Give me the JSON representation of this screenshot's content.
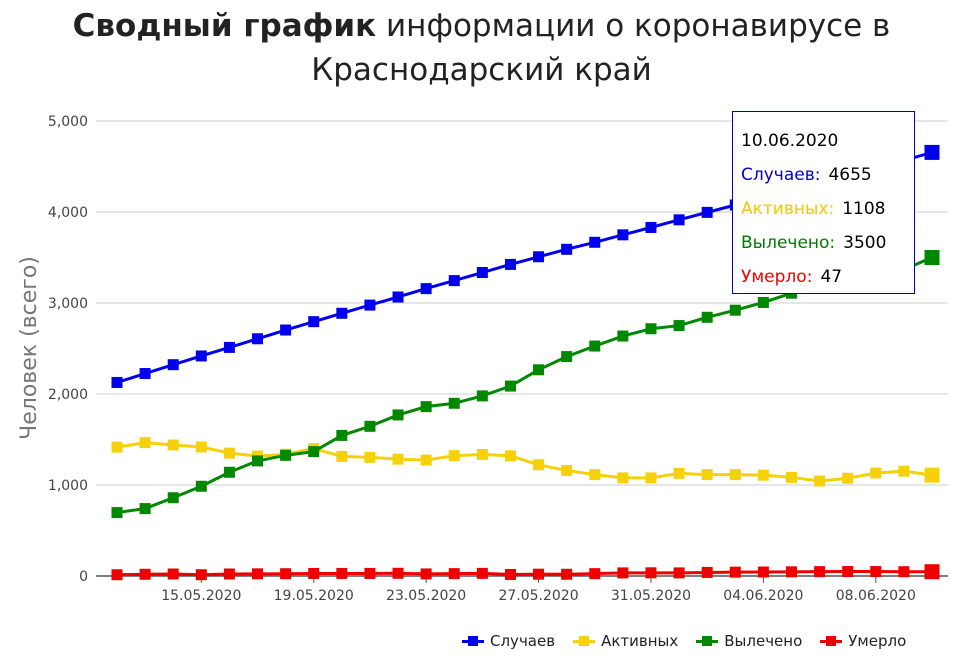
{
  "title": {
    "bold": "Сводный график",
    "rest_line1": "информации о коронавирусе в",
    "line2": "Краснодарский край"
  },
  "tooltip": {
    "date": "10.06.2020",
    "rows": [
      {
        "label": "Случаев:",
        "value": "4655",
        "color": "#0000cc"
      },
      {
        "label": "Активных:",
        "value": "1108",
        "color": "#f2c800"
      },
      {
        "label": "Вылечено:",
        "value": "3500",
        "color": "#007a00"
      },
      {
        "label": "Умерло:",
        "value": "47",
        "color": "#ee0000"
      }
    ]
  },
  "chart_data": {
    "type": "line",
    "title": "Сводный график информации о коронавирусе в Краснодарский край",
    "xlabel": "",
    "ylabel": "Человек (всего)",
    "ylim": [
      0,
      5000
    ],
    "y_ticks": [
      "0",
      "1,000",
      "2,000",
      "3,000",
      "4,000",
      "5,000"
    ],
    "grid": true,
    "legend_position": "bottom-right",
    "x": [
      "12.05.2020",
      "13.05.2020",
      "14.05.2020",
      "15.05.2020",
      "16.05.2020",
      "17.05.2020",
      "18.05.2020",
      "19.05.2020",
      "20.05.2020",
      "21.05.2020",
      "22.05.2020",
      "23.05.2020",
      "24.05.2020",
      "25.05.2020",
      "26.05.2020",
      "27.05.2020",
      "28.05.2020",
      "29.05.2020",
      "30.05.2020",
      "31.05.2020",
      "01.06.2020",
      "02.06.2020",
      "03.06.2020",
      "04.06.2020",
      "05.06.2020",
      "06.06.2020",
      "07.06.2020",
      "08.06.2020",
      "09.06.2020",
      "10.06.2020"
    ],
    "x_tick_labels": [
      "15.05.2020",
      "19.05.2020",
      "23.05.2020",
      "27.05.2020",
      "31.05.2020",
      "04.06.2020",
      "08.06.2020"
    ],
    "series": [
      {
        "name": "Случаев",
        "color": "#0000ee",
        "values": [
          2127,
          2225,
          2322,
          2418,
          2512,
          2607,
          2703,
          2795,
          2887,
          2977,
          3066,
          3158,
          3246,
          3335,
          3424,
          3508,
          3590,
          3667,
          3749,
          3830,
          3914,
          3996,
          4077,
          4158,
          4238,
          4318,
          4398,
          4478,
          4567,
          4655
        ]
      },
      {
        "name": "Активных",
        "color": "#f5d10a",
        "values": [
          1416,
          1465,
          1440,
          1418,
          1350,
          1318,
          1338,
          1400,
          1314,
          1304,
          1284,
          1274,
          1322,
          1336,
          1320,
          1222,
          1160,
          1114,
          1078,
          1078,
          1128,
          1114,
          1114,
          1108,
          1084,
          1044,
          1074,
          1132,
          1152,
          1108
        ]
      },
      {
        "name": "Вылечено",
        "color": "#008800",
        "values": [
          697,
          741,
          860,
          986,
          1140,
          1265,
          1326,
          1367,
          1545,
          1645,
          1770,
          1861,
          1898,
          1979,
          2087,
          2266,
          2411,
          2527,
          2637,
          2717,
          2752,
          2843,
          2921,
          3006,
          3108,
          3226,
          3275,
          3297,
          3368,
          3500
        ]
      },
      {
        "name": "Умерло",
        "color": "#ee0000",
        "values": [
          14,
          19,
          22,
          14,
          22,
          24,
          25,
          28,
          28,
          28,
          30,
          23,
          26,
          29,
          17,
          20,
          19,
          26,
          34,
          35,
          34,
          39,
          42,
          44,
          46,
          48,
          49,
          49,
          47,
          47
        ]
      }
    ]
  }
}
